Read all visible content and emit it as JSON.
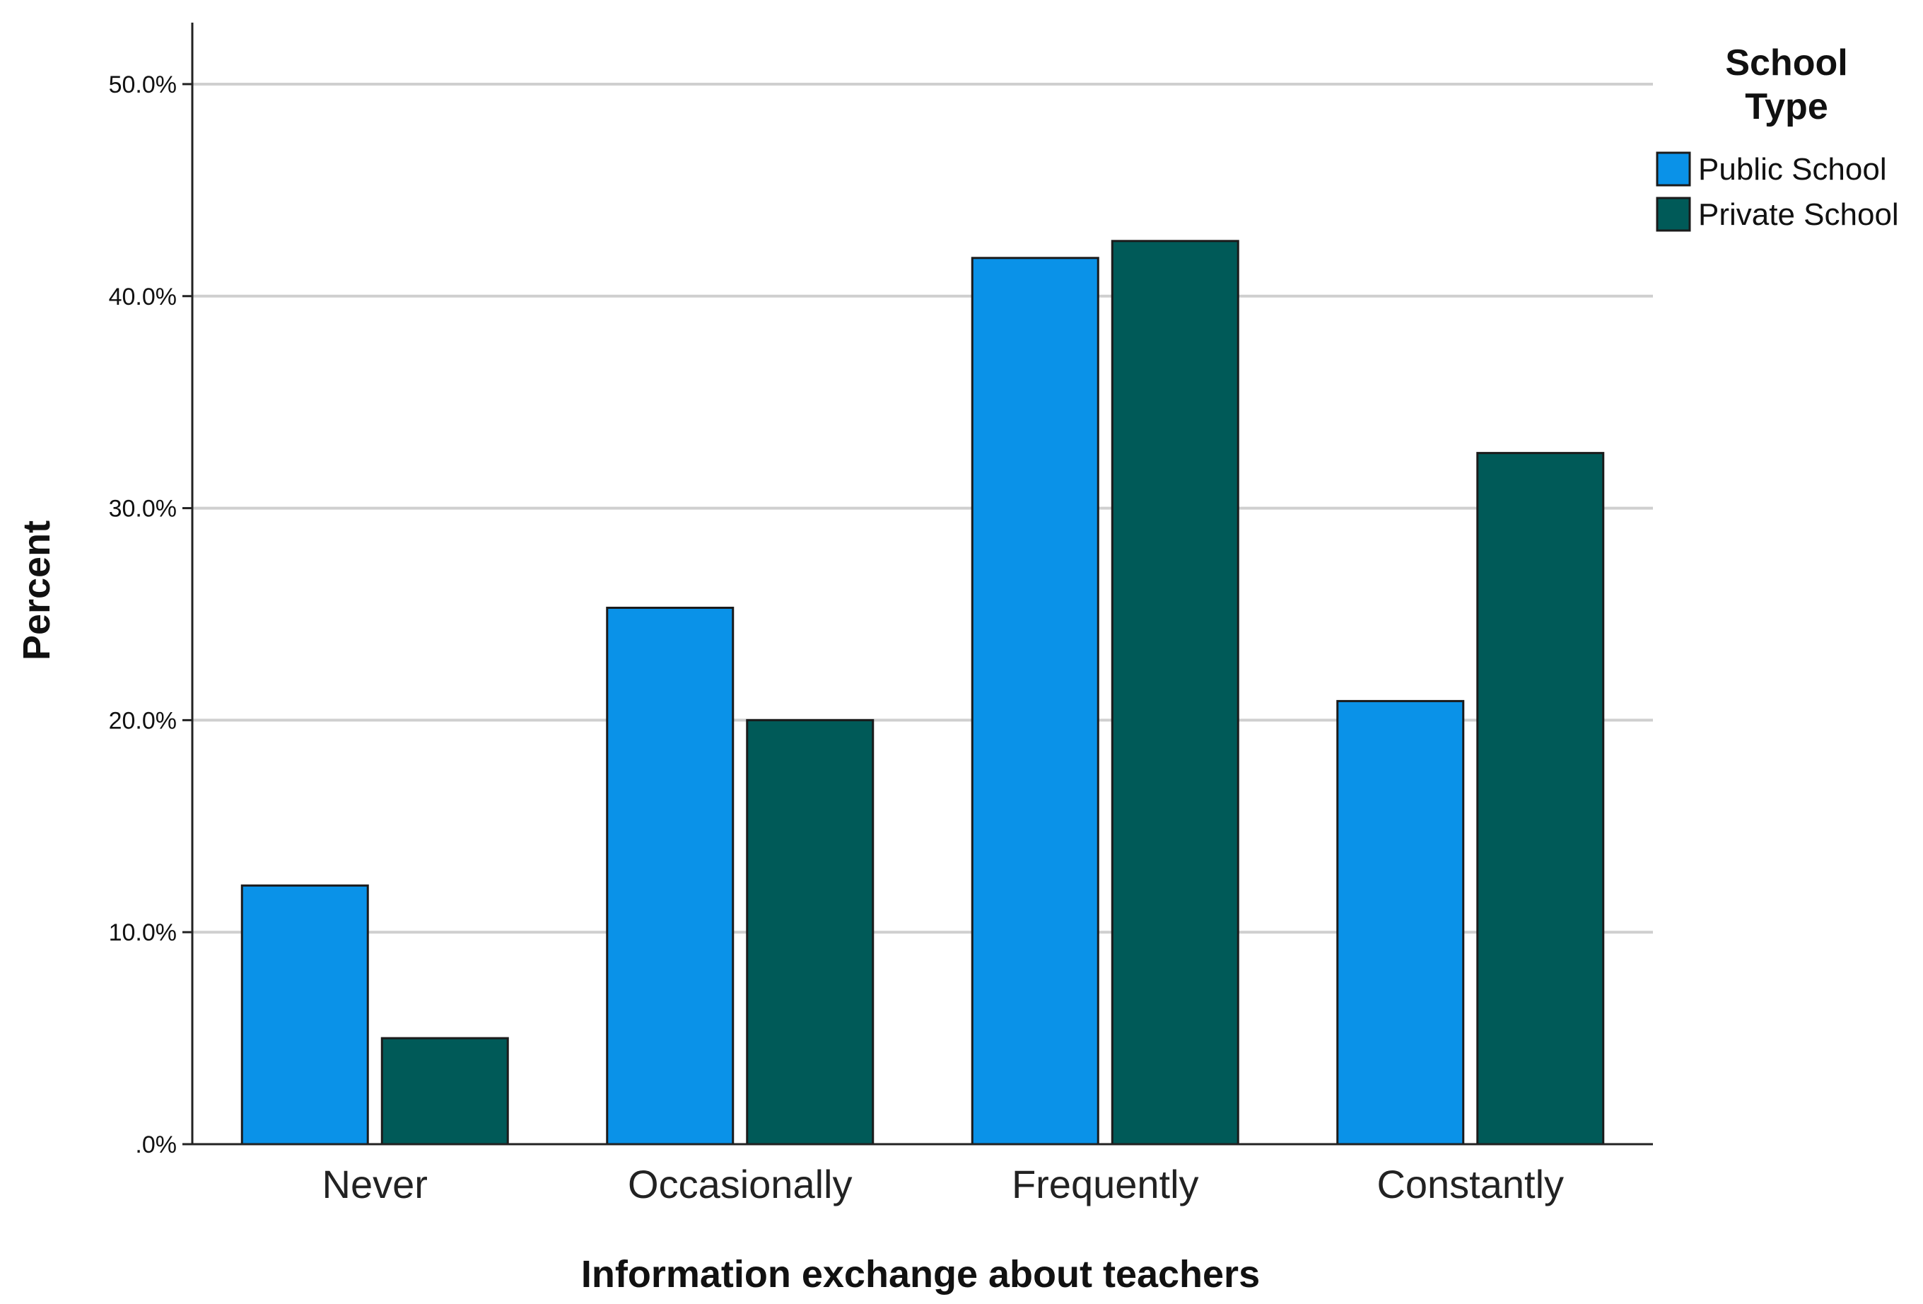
{
  "chart_data": {
    "type": "bar",
    "xlabel": "Information exchange about teachers",
    "ylabel": "Percent",
    "categories": [
      "Never",
      "Occasionally",
      "Frequently",
      "Constantly"
    ],
    "series": [
      {
        "name": "Public School",
        "color": "#0a92e8",
        "values": [
          12.2,
          25.3,
          41.8,
          20.9
        ]
      },
      {
        "name": "Private School",
        "color": "#005a58",
        "values": [
          5.0,
          20.0,
          42.6,
          32.6
        ]
      }
    ],
    "ylim": [
      0,
      52.9
    ],
    "yticks": [
      0,
      10,
      20,
      30,
      40,
      50
    ],
    "ytick_labels": [
      ".0%",
      "10.0%",
      "20.0%",
      "30.0%",
      "40.0%",
      "50.0%"
    ],
    "grid": true,
    "legend": {
      "title_lines": [
        "School",
        "Type"
      ],
      "placement": "top-right"
    }
  }
}
